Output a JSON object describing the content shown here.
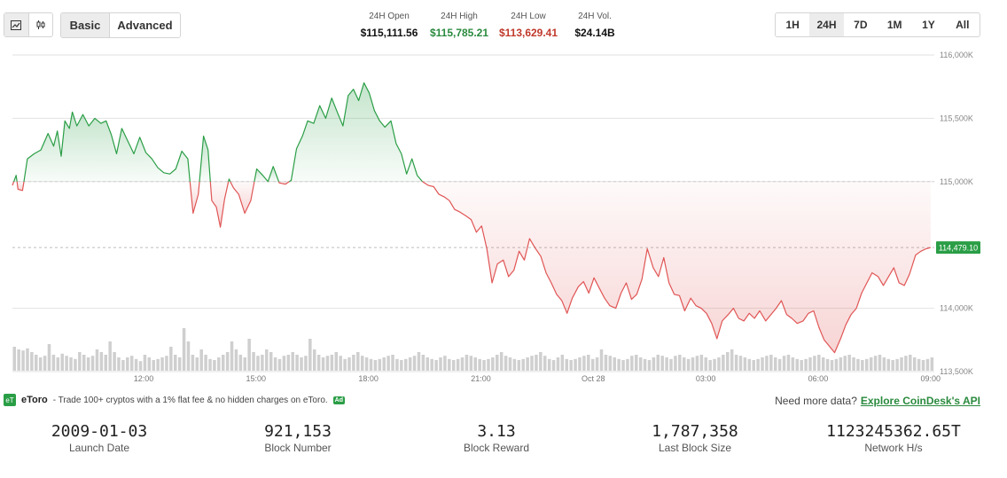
{
  "toolbar": {
    "chart_type_icons": [
      "line-chart-icon",
      "candlestick-icon"
    ],
    "modes": [
      "Basic",
      "Advanced"
    ],
    "active_mode": "Basic",
    "ranges": [
      "1H",
      "24H",
      "7D",
      "1M",
      "1Y",
      "All"
    ],
    "active_range": "24H"
  },
  "stats24h": [
    {
      "label": "24H Open",
      "value": "$115,111.56",
      "color": "#111111"
    },
    {
      "label": "24H High",
      "value": "$115,785.21",
      "color": "#2a8a3e"
    },
    {
      "label": "24H Low",
      "value": "$113,629.41",
      "color": "#c0392b"
    },
    {
      "label": "24H Vol.",
      "value": "$24.14B",
      "color": "#111111"
    }
  ],
  "chart_data": {
    "type": "area",
    "y_ticks": [
      "116,000K",
      "115,500K",
      "115,000K",
      "114,000K",
      "113,500K"
    ],
    "y_tick_values": [
      116000,
      115500,
      115000,
      114000,
      113500
    ],
    "ylim": [
      113500,
      116000
    ],
    "x_ticks": [
      "12:00",
      "15:00",
      "18:00",
      "21:00",
      "Oct 28",
      "03:00",
      "06:00",
      "09:00"
    ],
    "x_tick_positions": [
      3.5,
      6.5,
      9.5,
      12.5,
      15.5,
      18.5,
      21.5,
      24.5
    ],
    "xlim": [
      0,
      24.6
    ],
    "baseline": 115000,
    "current_price": 114479.1,
    "current_price_label": "114,479.10",
    "up_color": "#2a9e46",
    "down_color": "#e05555",
    "price": [
      [
        0.0,
        114970
      ],
      [
        0.1,
        115050
      ],
      [
        0.15,
        114940
      ],
      [
        0.27,
        114930
      ],
      [
        0.4,
        115180
      ],
      [
        0.58,
        115220
      ],
      [
        0.76,
        115250
      ],
      [
        0.95,
        115380
      ],
      [
        1.1,
        115280
      ],
      [
        1.2,
        115400
      ],
      [
        1.3,
        115200
      ],
      [
        1.4,
        115480
      ],
      [
        1.52,
        115420
      ],
      [
        1.6,
        115550
      ],
      [
        1.72,
        115440
      ],
      [
        1.88,
        115530
      ],
      [
        2.04,
        115440
      ],
      [
        2.2,
        115500
      ],
      [
        2.36,
        115460
      ],
      [
        2.5,
        115480
      ],
      [
        2.64,
        115370
      ],
      [
        2.78,
        115220
      ],
      [
        2.92,
        115420
      ],
      [
        3.08,
        115320
      ],
      [
        3.24,
        115220
      ],
      [
        3.4,
        115350
      ],
      [
        3.56,
        115230
      ],
      [
        3.72,
        115180
      ],
      [
        3.88,
        115110
      ],
      [
        4.04,
        115070
      ],
      [
        4.2,
        115060
      ],
      [
        4.36,
        115100
      ],
      [
        4.52,
        115240
      ],
      [
        4.68,
        115180
      ],
      [
        4.82,
        114750
      ],
      [
        4.96,
        114900
      ],
      [
        5.1,
        115360
      ],
      [
        5.22,
        115250
      ],
      [
        5.32,
        114850
      ],
      [
        5.44,
        114800
      ],
      [
        5.55,
        114640
      ],
      [
        5.66,
        114860
      ],
      [
        5.78,
        115020
      ],
      [
        5.9,
        114950
      ],
      [
        6.04,
        114900
      ],
      [
        6.2,
        114750
      ],
      [
        6.36,
        114850
      ],
      [
        6.52,
        115100
      ],
      [
        6.68,
        115050
      ],
      [
        6.82,
        115000
      ],
      [
        6.96,
        115120
      ],
      [
        7.12,
        114990
      ],
      [
        7.28,
        114980
      ],
      [
        7.44,
        115010
      ],
      [
        7.58,
        115260
      ],
      [
        7.74,
        115360
      ],
      [
        7.88,
        115480
      ],
      [
        8.04,
        115460
      ],
      [
        8.2,
        115600
      ],
      [
        8.36,
        115500
      ],
      [
        8.52,
        115660
      ],
      [
        8.68,
        115540
      ],
      [
        8.82,
        115440
      ],
      [
        8.96,
        115680
      ],
      [
        9.1,
        115730
      ],
      [
        9.24,
        115640
      ],
      [
        9.38,
        115780
      ],
      [
        9.52,
        115700
      ],
      [
        9.66,
        115560
      ],
      [
        9.8,
        115480
      ],
      [
        9.94,
        115430
      ],
      [
        10.1,
        115480
      ],
      [
        10.24,
        115300
      ],
      [
        10.38,
        115220
      ],
      [
        10.52,
        115060
      ],
      [
        10.66,
        115180
      ],
      [
        10.8,
        115050
      ],
      [
        10.94,
        115000
      ],
      [
        11.1,
        114970
      ],
      [
        11.24,
        114960
      ],
      [
        11.38,
        114900
      ],
      [
        11.52,
        114880
      ],
      [
        11.66,
        114850
      ],
      [
        11.8,
        114780
      ],
      [
        11.94,
        114760
      ],
      [
        12.1,
        114730
      ],
      [
        12.24,
        114700
      ],
      [
        12.38,
        114600
      ],
      [
        12.52,
        114650
      ],
      [
        12.66,
        114470
      ],
      [
        12.8,
        114200
      ],
      [
        12.94,
        114350
      ],
      [
        13.1,
        114380
      ],
      [
        13.24,
        114250
      ],
      [
        13.38,
        114300
      ],
      [
        13.52,
        114450
      ],
      [
        13.66,
        114380
      ],
      [
        13.8,
        114550
      ],
      [
        13.94,
        114480
      ],
      [
        14.1,
        114410
      ],
      [
        14.24,
        114280
      ],
      [
        14.38,
        114200
      ],
      [
        14.52,
        114110
      ],
      [
        14.66,
        114060
      ],
      [
        14.8,
        113960
      ],
      [
        14.94,
        114080
      ],
      [
        15.1,
        114170
      ],
      [
        15.24,
        114210
      ],
      [
        15.38,
        114120
      ],
      [
        15.52,
        114240
      ],
      [
        15.66,
        114160
      ],
      [
        15.8,
        114080
      ],
      [
        15.94,
        114020
      ],
      [
        16.1,
        114000
      ],
      [
        16.24,
        114120
      ],
      [
        16.38,
        114200
      ],
      [
        16.52,
        114070
      ],
      [
        16.66,
        114110
      ],
      [
        16.8,
        114230
      ],
      [
        16.94,
        114470
      ],
      [
        17.1,
        114320
      ],
      [
        17.24,
        114250
      ],
      [
        17.38,
        114400
      ],
      [
        17.52,
        114200
      ],
      [
        17.66,
        114110
      ],
      [
        17.8,
        114100
      ],
      [
        17.94,
        113980
      ],
      [
        18.1,
        114080
      ],
      [
        18.24,
        114020
      ],
      [
        18.38,
        114000
      ],
      [
        18.52,
        113960
      ],
      [
        18.66,
        113880
      ],
      [
        18.8,
        113760
      ],
      [
        18.94,
        113900
      ],
      [
        19.1,
        113950
      ],
      [
        19.24,
        114000
      ],
      [
        19.38,
        113920
      ],
      [
        19.52,
        113900
      ],
      [
        19.66,
        113960
      ],
      [
        19.8,
        113920
      ],
      [
        19.94,
        113980
      ],
      [
        20.1,
        113900
      ],
      [
        20.24,
        113950
      ],
      [
        20.38,
        114000
      ],
      [
        20.52,
        114060
      ],
      [
        20.66,
        113950
      ],
      [
        20.8,
        113920
      ],
      [
        20.94,
        113880
      ],
      [
        21.1,
        113900
      ],
      [
        21.24,
        113960
      ],
      [
        21.38,
        113980
      ],
      [
        21.52,
        113850
      ],
      [
        21.66,
        113750
      ],
      [
        21.8,
        113700
      ],
      [
        21.94,
        113650
      ],
      [
        22.1,
        113760
      ],
      [
        22.24,
        113870
      ],
      [
        22.38,
        113950
      ],
      [
        22.52,
        114000
      ],
      [
        22.66,
        114120
      ],
      [
        22.8,
        114200
      ],
      [
        22.94,
        114280
      ],
      [
        23.1,
        114250
      ],
      [
        23.24,
        114180
      ],
      [
        23.38,
        114250
      ],
      [
        23.52,
        114320
      ],
      [
        23.66,
        114200
      ],
      [
        23.8,
        114180
      ],
      [
        23.94,
        114270
      ],
      [
        24.1,
        114420
      ],
      [
        24.24,
        114450
      ],
      [
        24.38,
        114470
      ],
      [
        24.5,
        114479.1
      ]
    ],
    "volume_ratio": [
      0.45,
      0.4,
      0.38,
      0.42,
      0.35,
      0.3,
      0.25,
      0.28,
      0.5,
      0.3,
      0.25,
      0.32,
      0.28,
      0.25,
      0.22,
      0.35,
      0.3,
      0.25,
      0.28,
      0.4,
      0.35,
      0.3,
      0.55,
      0.35,
      0.25,
      0.2,
      0.25,
      0.28,
      0.22,
      0.18,
      0.3,
      0.25,
      0.2,
      0.22,
      0.25,
      0.28,
      0.45,
      0.3,
      0.25,
      0.8,
      0.55,
      0.3,
      0.25,
      0.4,
      0.3,
      0.22,
      0.2,
      0.25,
      0.3,
      0.35,
      0.55,
      0.4,
      0.3,
      0.25,
      0.6,
      0.35,
      0.28,
      0.3,
      0.4,
      0.35,
      0.25,
      0.22,
      0.28,
      0.3,
      0.35,
      0.3,
      0.25,
      0.28,
      0.6,
      0.4,
      0.3,
      0.25,
      0.28,
      0.3,
      0.35,
      0.28,
      0.22,
      0.25,
      0.3,
      0.35,
      0.28,
      0.25,
      0.22,
      0.2,
      0.22,
      0.25,
      0.28,
      0.3,
      0.22,
      0.2,
      0.22,
      0.25,
      0.28,
      0.35,
      0.3,
      0.25,
      0.22,
      0.2,
      0.25,
      0.28,
      0.22,
      0.2,
      0.22,
      0.25,
      0.3,
      0.28,
      0.25,
      0.22,
      0.2,
      0.22,
      0.25,
      0.3,
      0.35,
      0.28,
      0.25,
      0.22,
      0.2,
      0.22,
      0.25,
      0.28,
      0.3,
      0.35,
      0.28,
      0.22,
      0.2,
      0.25,
      0.3,
      0.22,
      0.2,
      0.22,
      0.25,
      0.28,
      0.3,
      0.22,
      0.25,
      0.4,
      0.3,
      0.28,
      0.25,
      0.22,
      0.2,
      0.22,
      0.28,
      0.3,
      0.25,
      0.22,
      0.2,
      0.25,
      0.3,
      0.28,
      0.25,
      0.22,
      0.28,
      0.3,
      0.25,
      0.22,
      0.25,
      0.28,
      0.3,
      0.25,
      0.2,
      0.22,
      0.25,
      0.3,
      0.35,
      0.4,
      0.3,
      0.28,
      0.25,
      0.22,
      0.2,
      0.22,
      0.25,
      0.28,
      0.3,
      0.25,
      0.22,
      0.28,
      0.3,
      0.25,
      0.22,
      0.2,
      0.22,
      0.25,
      0.28,
      0.3,
      0.25,
      0.22,
      0.2,
      0.22,
      0.25,
      0.28,
      0.3,
      0.25,
      0.22,
      0.2,
      0.22,
      0.25,
      0.28,
      0.3,
      0.25,
      0.22,
      0.2,
      0.22,
      0.25,
      0.28,
      0.3,
      0.25,
      0.22,
      0.2,
      0.22,
      0.25
    ]
  },
  "ad": {
    "logo": "eToro-logo",
    "logo_text": "eT",
    "name": "eToro",
    "text": "- Trade 100+ cryptos with a 1% flat fee & no hidden charges on eToro.",
    "badge": "Ad"
  },
  "more_data": {
    "text": "Need more data?",
    "link": "Explore CoinDesk's API"
  },
  "footer_stats": [
    {
      "value": "2009-01-03",
      "label": "Launch Date"
    },
    {
      "value": "921,153",
      "label": "Block Number"
    },
    {
      "value": "3.13",
      "label": "Block Reward"
    },
    {
      "value": "1,787,358",
      "label": "Last Block Size"
    },
    {
      "value": "1123245362.65T",
      "label": "Network H/s"
    }
  ]
}
